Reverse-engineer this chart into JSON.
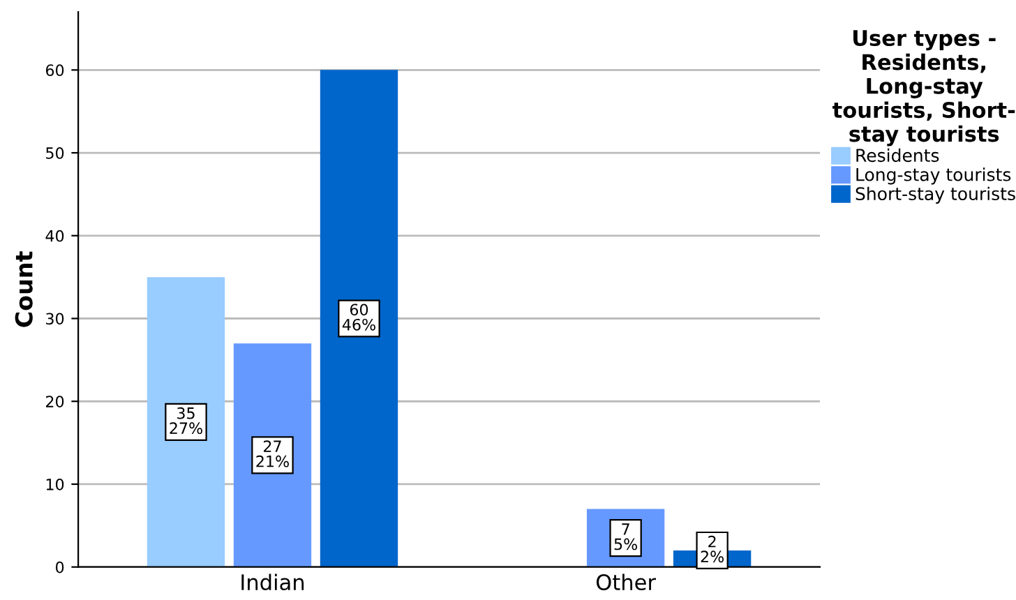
{
  "chart_data": {
    "type": "bar",
    "ylabel": "Count",
    "legend_title": "User types -\nResidents,\nLong-stay\ntourists, Short-\nstay tourists",
    "categories": [
      "Indian",
      "Other"
    ],
    "series": [
      {
        "name": "Residents",
        "color": "#99ccff",
        "values": [
          35,
          0
        ],
        "value_labels": [
          "35\n27%",
          null
        ]
      },
      {
        "name": "Long-stay tourists",
        "color": "#6699ff",
        "values": [
          27,
          7
        ],
        "value_labels": [
          "27\n21%",
          "7\n5%"
        ]
      },
      {
        "name": "Short-stay tourists",
        "color": "#0066cc",
        "values": [
          60,
          2
        ],
        "value_labels": [
          "60\n46%",
          "2\n2%"
        ]
      }
    ],
    "ylim": [
      0,
      67
    ],
    "yticks": [
      0,
      10,
      20,
      30,
      40,
      50,
      60
    ],
    "grid": "y",
    "legend": "right"
  }
}
